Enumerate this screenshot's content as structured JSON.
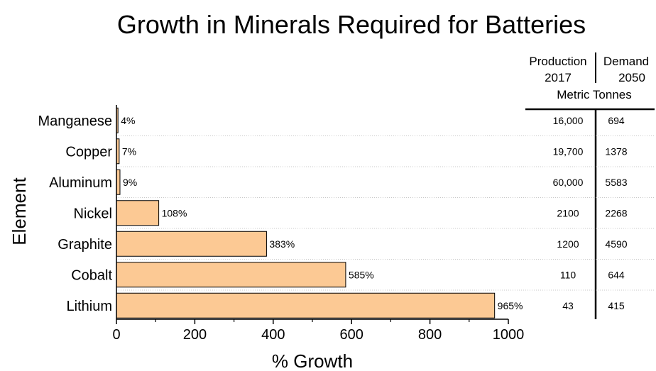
{
  "chart_data": {
    "type": "bar",
    "orientation": "horizontal",
    "title": "Growth in Minerals Required for Batteries",
    "xlabel": "% Growth",
    "ylabel": "Element",
    "xlim": [
      0,
      1000
    ],
    "xticks": [
      "0",
      "200",
      "400",
      "600",
      "800",
      "1000"
    ],
    "bar_color": "#fcc994",
    "categories": [
      "Manganese",
      "Copper",
      "Aluminum",
      "Nickel",
      "Graphite",
      "Cobalt",
      "Lithium"
    ],
    "values": [
      4,
      7,
      9,
      108,
      383,
      585,
      965
    ],
    "value_labels": [
      "4%",
      "7%",
      "9%",
      "108%",
      "383%",
      "585%",
      "965%"
    ],
    "table": {
      "col1_header": [
        "Production",
        "2017"
      ],
      "col2_header": [
        "Demand",
        "2050"
      ],
      "units": "Metric Tonnes",
      "production_2017": [
        "16,000",
        "19,700",
        "60,000",
        "2100",
        "1200",
        "110",
        "43"
      ],
      "demand_2050": [
        "694",
        "1378",
        "5583",
        "2268",
        "4590",
        "644",
        "415"
      ]
    }
  }
}
